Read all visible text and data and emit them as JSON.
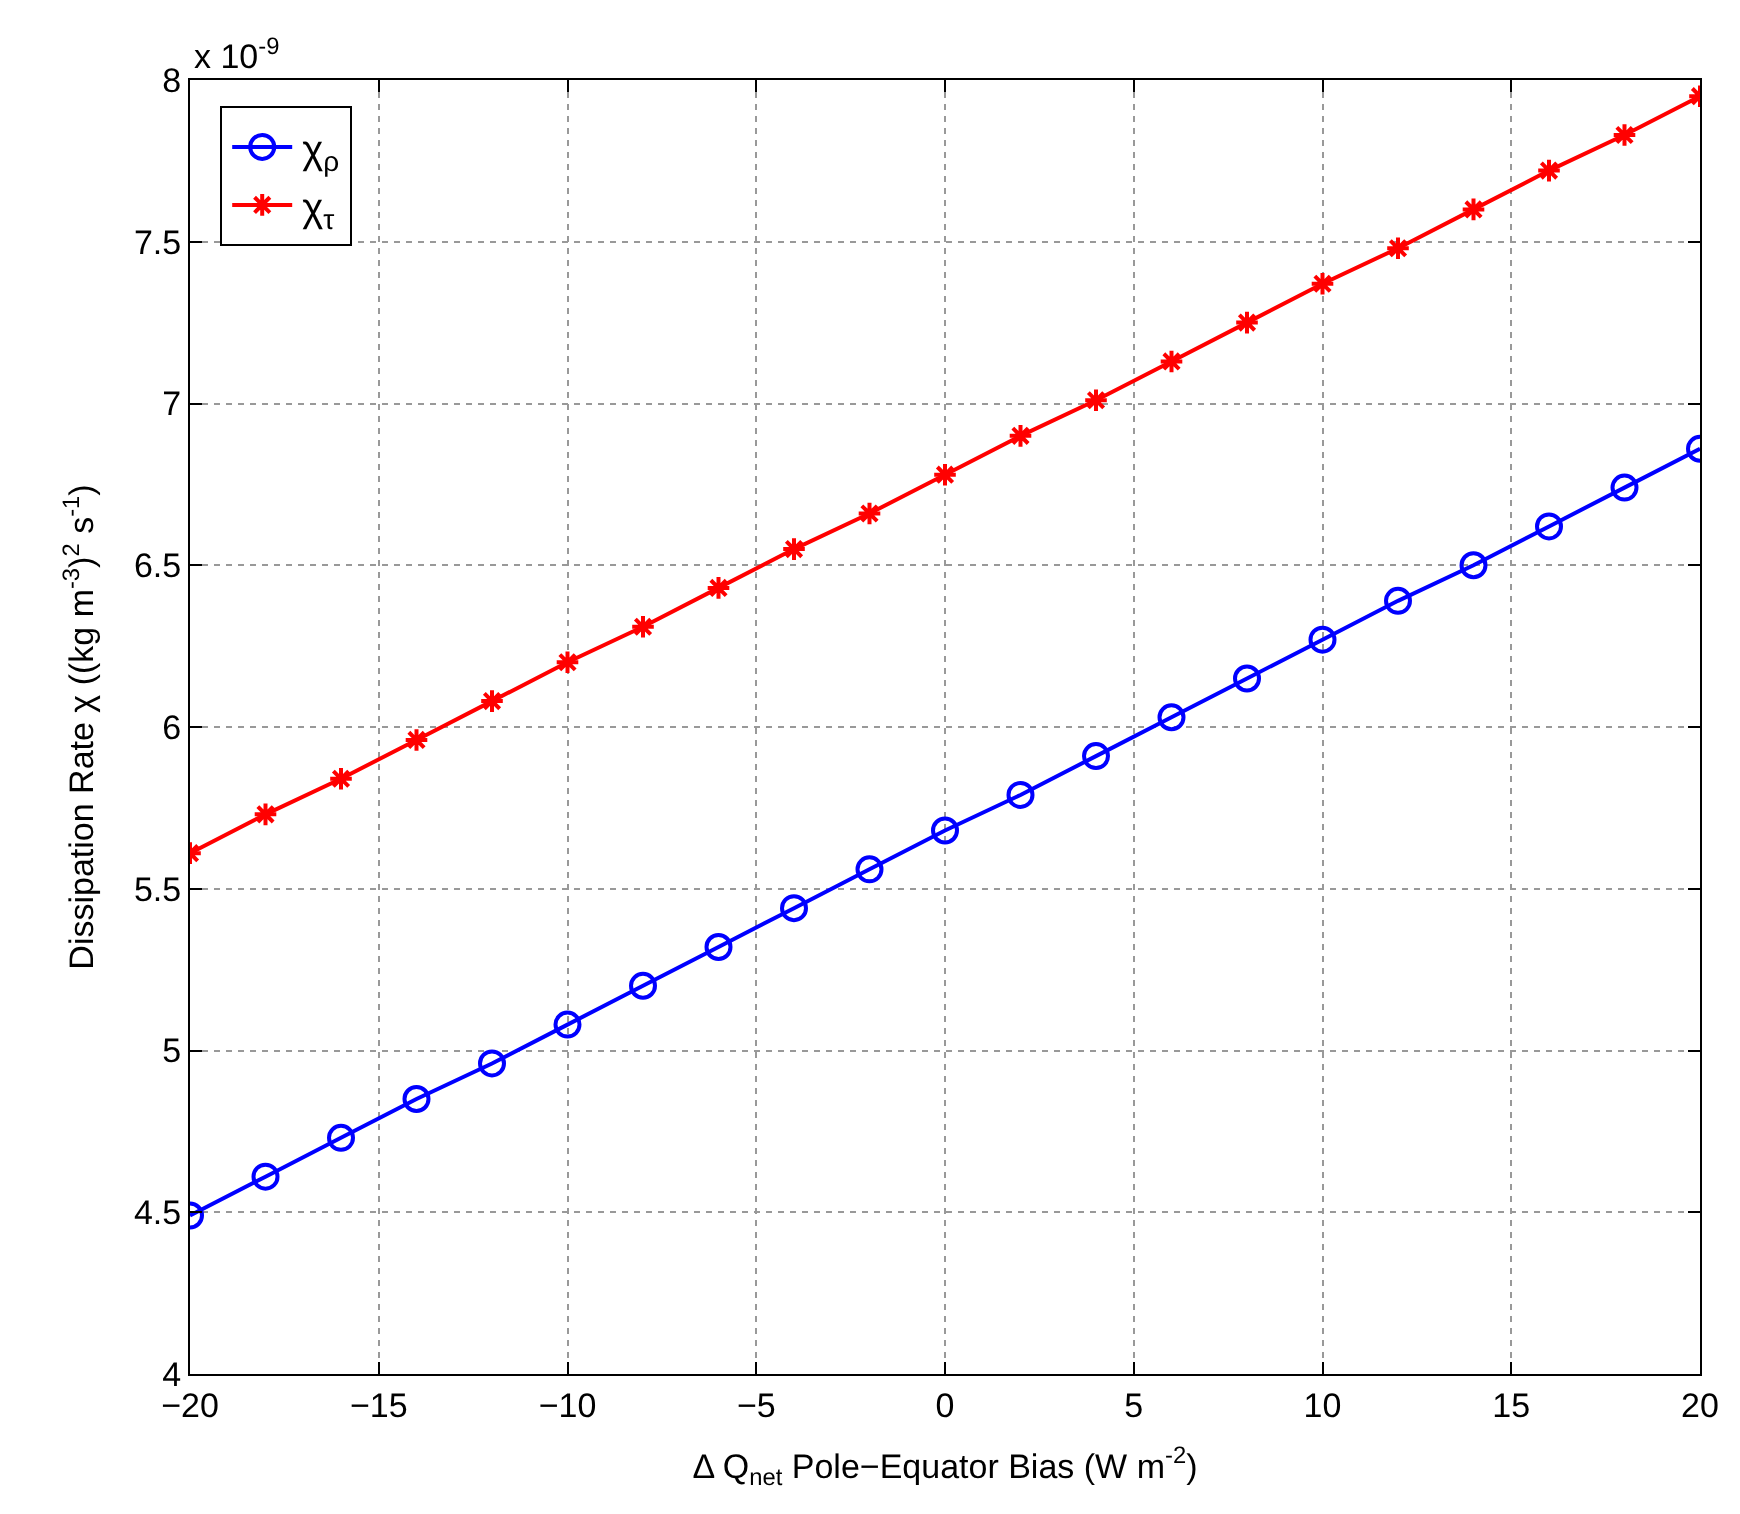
{
  "chart_data": {
    "type": "line",
    "xlabel": "Δ Q$_{net}$ Pole−Equator Bias (W m$^{-2}$)",
    "ylabel": "Dissipation Rate χ ((kg m$^{-3}$)$^{2}$ s$^{-1}$)",
    "annotations": [
      "x 10$^{-9}$"
    ],
    "x": [
      -20,
      -18,
      -16,
      -14,
      -12,
      -10,
      -8,
      -6,
      -4,
      -2,
      0,
      2,
      4,
      6,
      8,
      10,
      12,
      14,
      16,
      18,
      20
    ],
    "series": [
      {
        "name": "χ$_{ρ}$",
        "color": "#0000ff",
        "marker": "circle",
        "values": [
          4.49,
          4.61,
          4.73,
          4.85,
          4.96,
          5.08,
          5.2,
          5.32,
          5.44,
          5.56,
          5.68,
          5.79,
          5.91,
          6.03,
          6.15,
          6.27,
          6.39,
          6.5,
          6.62,
          6.74,
          6.86
        ]
      },
      {
        "name": "χ$_{τ}$",
        "color": "#ff0000",
        "marker": "cross",
        "values": [
          5.61,
          5.73,
          5.84,
          5.96,
          6.08,
          6.2,
          6.31,
          6.43,
          6.55,
          6.66,
          6.78,
          6.9,
          7.01,
          7.13,
          7.25,
          7.37,
          7.48,
          7.6,
          7.72,
          7.83,
          7.95
        ]
      }
    ],
    "xlim": [
      -20,
      20
    ],
    "xticks": [
      -20,
      -15,
      -10,
      -5,
      0,
      5,
      10,
      15,
      20
    ],
    "ylim": [
      4,
      8
    ],
    "yticks": [
      4,
      4.5,
      5,
      5.5,
      6,
      6.5,
      7,
      7.5,
      8
    ],
    "grid": true,
    "legend": "top left",
    "line_style": "solid"
  }
}
